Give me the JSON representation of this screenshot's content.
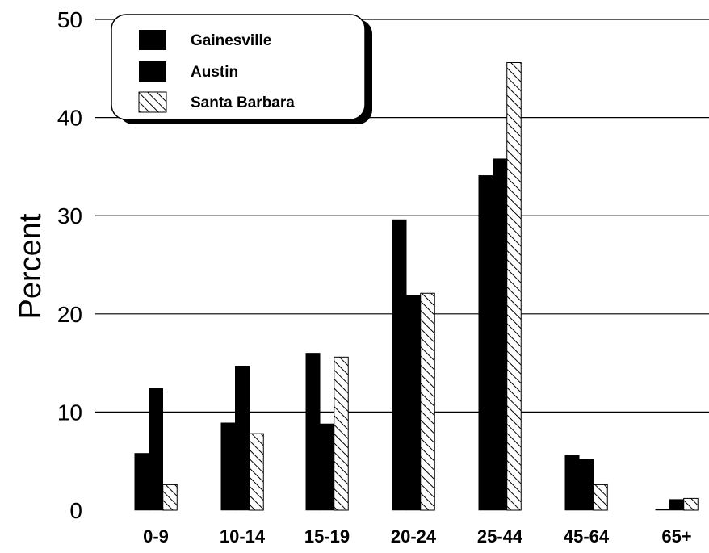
{
  "chart_data": {
    "type": "bar",
    "categories": [
      "0-9",
      "10-14",
      "15-19",
      "20-24",
      "25-44",
      "45-64",
      "65+"
    ],
    "series": [
      {
        "name": "Gainesville",
        "values": [
          5.8,
          8.9,
          16.0,
          29.6,
          34.1,
          5.6,
          0.1
        ],
        "fill": "solid",
        "color": "#000000"
      },
      {
        "name": "Austin",
        "values": [
          12.4,
          14.7,
          8.8,
          21.9,
          35.8,
          5.2,
          1.1
        ],
        "fill": "solid",
        "color": "#000000"
      },
      {
        "name": "Santa Barbara",
        "values": [
          2.6,
          7.8,
          15.6,
          22.1,
          45.6,
          2.6,
          1.2
        ],
        "fill": "hatched",
        "color": "#000000"
      }
    ],
    "title": "",
    "xlabel": "",
    "ylabel": "Percent",
    "ylim": [
      0,
      50
    ],
    "yticks": [
      0,
      10,
      20,
      30,
      40,
      50
    ],
    "grid": "horizontal",
    "legend_position": "top-left"
  }
}
